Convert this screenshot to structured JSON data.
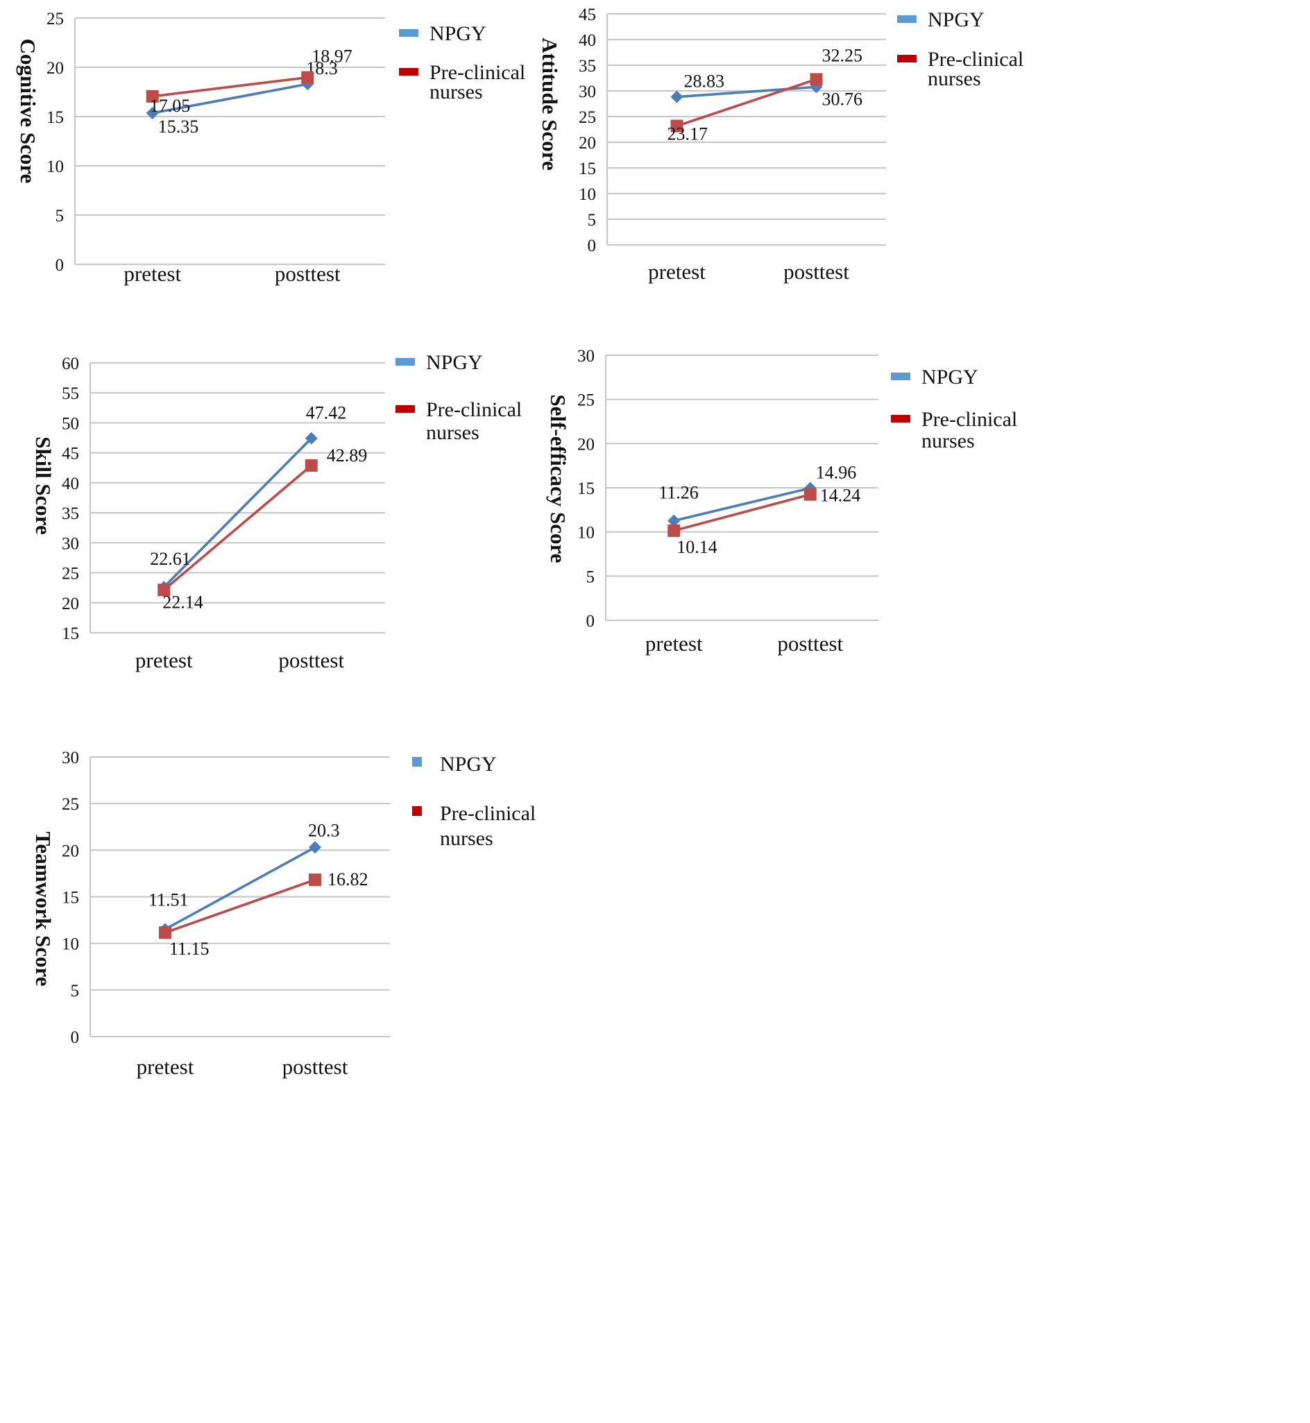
{
  "series_names": [
    "NPGY",
    "Pre-clinical nurses"
  ],
  "colors": {
    "npgy": "#4a7ebb",
    "preclinical": "#be4b48",
    "legend_npgy": "#5b9bd5",
    "legend_preclinical": "#c00000",
    "grid": "#c8c8c8"
  },
  "chart_data": [
    {
      "type": "line",
      "ylabel": "Cognitive Score",
      "categories": [
        "pretest",
        "posttest"
      ],
      "ylim": [
        0,
        25
      ],
      "yticks": [
        0,
        5,
        10,
        15,
        20,
        25
      ],
      "legend": [
        {
          "icon": "bar-icon",
          "lines": [
            "NPGY"
          ]
        },
        {
          "icon": "bar-icon",
          "lines": [
            "Pre-clinical",
            "nurses"
          ]
        }
      ],
      "series": [
        {
          "name": "NPGY",
          "marker": "diamond",
          "values": [
            15.35,
            18.3
          ],
          "labels": [
            "15.35",
            "18.3"
          ]
        },
        {
          "name": "Pre-clinical nurses",
          "marker": "square",
          "values": [
            17.05,
            18.97
          ],
          "labels": [
            "17.05",
            "18.97"
          ]
        }
      ]
    },
    {
      "type": "line",
      "ylabel": "Attitude Score",
      "categories": [
        "pretest",
        "posttest"
      ],
      "ylim": [
        0,
        45
      ],
      "yticks": [
        0,
        5,
        10,
        15,
        20,
        25,
        30,
        35,
        40,
        45
      ],
      "legend": [
        {
          "icon": "bar-icon",
          "lines": [
            "NPGY"
          ]
        },
        {
          "icon": "bar-icon",
          "lines": [
            "Pre-clinical",
            "nurses"
          ]
        }
      ],
      "series": [
        {
          "name": "NPGY",
          "marker": "diamond",
          "values": [
            28.83,
            30.76
          ],
          "labels": [
            "28.83",
            "30.76"
          ]
        },
        {
          "name": "Pre-clinical nurses",
          "marker": "square",
          "values": [
            23.17,
            32.25
          ],
          "labels": [
            "23.17",
            "32.25"
          ]
        }
      ]
    },
    {
      "type": "line",
      "ylabel": "Skill  Score",
      "categories": [
        "pretest",
        "posttest"
      ],
      "ylim": [
        15,
        60
      ],
      "yticks": [
        15,
        20,
        25,
        30,
        35,
        40,
        45,
        50,
        55,
        60
      ],
      "legend": [
        {
          "icon": "bar-icon",
          "lines": [
            "NPGY"
          ]
        },
        {
          "icon": "bar-icon",
          "lines": [
            "Pre-clinical",
            "nurses"
          ]
        }
      ],
      "series": [
        {
          "name": "NPGY",
          "marker": "diamond",
          "values": [
            22.61,
            47.42
          ],
          "labels": [
            "22.61",
            "47.42"
          ]
        },
        {
          "name": "Pre-clinical nurses",
          "marker": "square",
          "values": [
            22.14,
            42.89
          ],
          "labels": [
            "22.14",
            "42.89"
          ]
        }
      ]
    },
    {
      "type": "line",
      "ylabel": "Self-efficacy Score",
      "categories": [
        "pretest",
        "posttest"
      ],
      "ylim": [
        0,
        30
      ],
      "yticks": [
        0,
        5,
        10,
        15,
        20,
        25,
        30
      ],
      "legend": [
        {
          "icon": "bar-icon",
          "lines": [
            "NPGY"
          ]
        },
        {
          "icon": "bar-icon",
          "lines": [
            "Pre-clinical",
            "nurses"
          ]
        }
      ],
      "series": [
        {
          "name": "NPGY",
          "marker": "diamond",
          "values": [
            11.26,
            14.96
          ],
          "labels": [
            "11.26",
            "14.96"
          ]
        },
        {
          "name": "Pre-clinical nurses",
          "marker": "square",
          "values": [
            10.14,
            14.24
          ],
          "labels": [
            "10.14",
            "14.24"
          ]
        }
      ]
    },
    {
      "type": "line",
      "ylabel": "Teamwork Score",
      "categories": [
        "pretest",
        "posttest"
      ],
      "ylim": [
        0,
        30
      ],
      "yticks": [
        0,
        5,
        10,
        15,
        20,
        25,
        30
      ],
      "legend": [
        {
          "icon": "square-icon",
          "lines": [
            "NPGY"
          ]
        },
        {
          "icon": "square-icon",
          "lines": [
            "Pre-clinical",
            "nurses"
          ]
        }
      ],
      "series": [
        {
          "name": "NPGY",
          "marker": "diamond",
          "values": [
            11.51,
            20.3
          ],
          "labels": [
            "11.51",
            "20.3"
          ]
        },
        {
          "name": "Pre-clinical nurses",
          "marker": "square",
          "values": [
            11.15,
            16.82
          ],
          "labels": [
            "11.15",
            "16.82"
          ]
        }
      ]
    }
  ]
}
